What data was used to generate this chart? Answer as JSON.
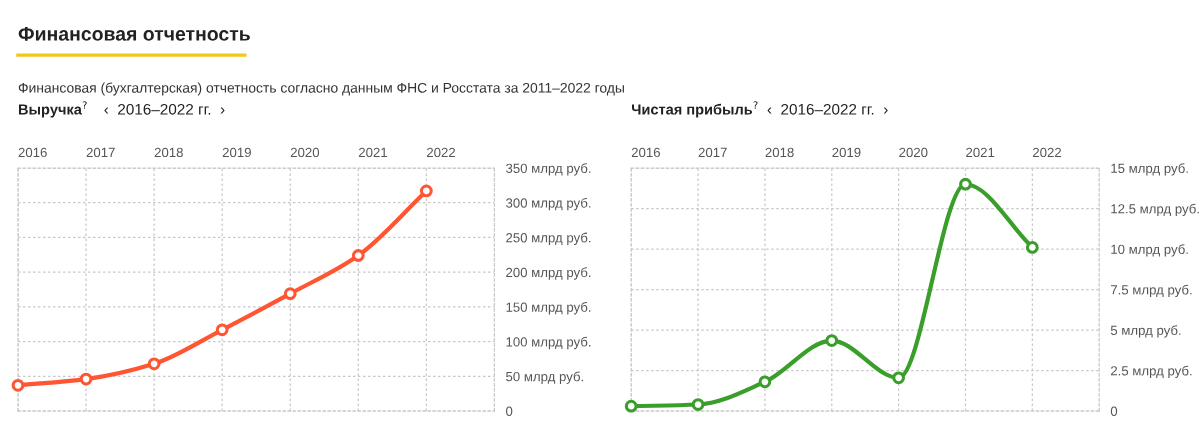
{
  "chart_data": [
    {
      "type": "line",
      "title": "Выручка$^{?}$",
      "annotations": [
        "Финансовая отчетность",
        "Финансовая (бухгалтерская) отчетность согласно данным ФНС и Росстата за 2011–2022 годы",
        "‹  2016–2022 гг.  ›"
      ],
      "categories": [
        "2016",
        "2017",
        "2018",
        "2019",
        "2020",
        "2021",
        "2022"
      ],
      "series": [
        {
          "color": "#ff5533",
          "values": [
            37,
            46,
            68,
            117,
            169,
            224,
            317
          ]
        }
      ],
      "ylim": [
        0,
        350
      ],
      "yticks": [
        0,
        {
          "value": 50,
          "label": "50 млрд руб."
        },
        {
          "value": 100,
          "label": "100 млрд руб."
        },
        {
          "value": 150,
          "label": "150 млрд руб."
        },
        {
          "value": 200,
          "label": "200 млрд руб."
        },
        {
          "value": 250,
          "label": "250 млрд руб."
        },
        {
          "value": 300,
          "label": "300 млрд руб."
        },
        {
          "value": 350,
          "label": "350 млрд руб."
        }
      ],
      "grid": true,
      "marker": "circle",
      "line_style": "solid"
    },
    {
      "type": "line",
      "title": "Чистая прибыль$^{?}$",
      "annotations": [
        "‹  2016–2022 гг.  ›"
      ],
      "categories": [
        "2016",
        "2017",
        "2018",
        "2019",
        "2020",
        "2021",
        "2022"
      ],
      "series": [
        {
          "color": "#3a9e2a",
          "values": [
            0.3,
            0.4,
            1.8,
            4.35,
            2.05,
            14.0,
            10.1
          ]
        }
      ],
      "ylim": [
        0,
        15
      ],
      "yticks": [
        0,
        {
          "value": 2.5,
          "label": "2.5 млрд руб."
        },
        {
          "value": 5,
          "label": "5 млрд руб."
        },
        {
          "value": 7.5,
          "label": "7.5 млрд руб."
        },
        {
          "value": 10,
          "label": "10 млрд руб."
        },
        {
          "value": 12.5,
          "label": "12.5 млрд руб."
        },
        {
          "value": 15,
          "label": "15 млрд руб."
        }
      ],
      "grid": true,
      "marker": "circle",
      "line_style": "solid"
    }
  ]
}
